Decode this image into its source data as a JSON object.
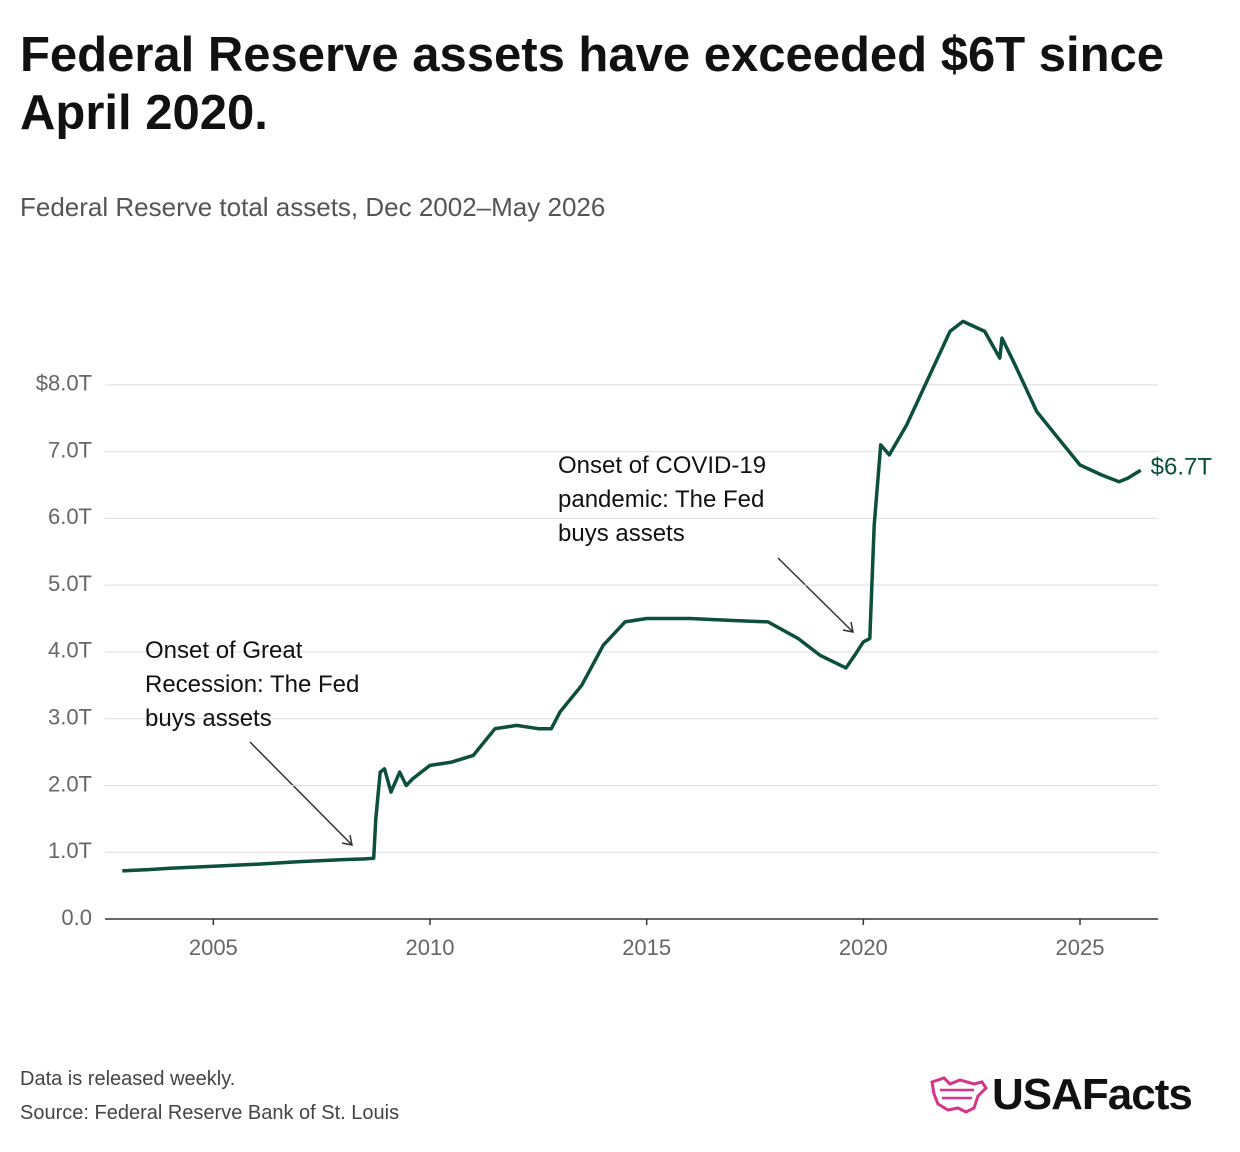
{
  "chart_data": {
    "type": "line",
    "title": "Federal Reserve assets have exceeded $6T since April 2020.",
    "subtitle": "Federal Reserve total assets, Dec 2002–May 2026",
    "x": [
      2002.9,
      2003.5,
      2004,
      2005,
      2006,
      2007,
      2008,
      2008.5,
      2008.7,
      2008.75,
      2008.85,
      2008.95,
      2009.1,
      2009.3,
      2009.45,
      2009.6,
      2010,
      2010.5,
      2011,
      2011.5,
      2012,
      2012.5,
      2012.8,
      2013,
      2013.5,
      2014,
      2014.5,
      2015,
      2016,
      2017,
      2017.8,
      2018.5,
      2019,
      2019.6,
      2019.8,
      2020,
      2020.15,
      2020.25,
      2020.4,
      2020.6,
      2021,
      2021.5,
      2022,
      2022.3,
      2022.8,
      2023.15,
      2023.2,
      2023.5,
      2024,
      2024.5,
      2025,
      2025.5,
      2025.9,
      2026.1,
      2026.4
    ],
    "series": [
      {
        "name": "Federal Reserve total assets",
        "color": "#0b4f3c",
        "values": [
          0.72,
          0.74,
          0.76,
          0.79,
          0.82,
          0.86,
          0.89,
          0.9,
          0.91,
          1.5,
          2.2,
          2.25,
          1.9,
          2.2,
          2.0,
          2.1,
          2.3,
          2.35,
          2.45,
          2.85,
          2.9,
          2.85,
          2.85,
          3.1,
          3.5,
          4.1,
          4.45,
          4.5,
          4.5,
          4.47,
          4.45,
          4.2,
          3.95,
          3.76,
          3.95,
          4.15,
          4.2,
          5.9,
          7.1,
          6.95,
          7.4,
          8.1,
          8.8,
          8.95,
          8.8,
          8.4,
          8.7,
          8.3,
          7.6,
          7.2,
          6.8,
          6.65,
          6.55,
          6.6,
          6.72
        ],
        "end_label": "$6.7T"
      }
    ],
    "xlim": [
      2002.5,
      2026.8
    ],
    "xticks": [
      2005,
      2010,
      2015,
      2020,
      2025
    ],
    "ylim": [
      0,
      9.6
    ],
    "yticks": [
      {
        "value": 0,
        "label": "0.0"
      },
      {
        "value": 1,
        "label": "1.0T"
      },
      {
        "value": 2,
        "label": "2.0T"
      },
      {
        "value": 3,
        "label": "3.0T"
      },
      {
        "value": 4,
        "label": "4.0T"
      },
      {
        "value": 5,
        "label": "5.0T"
      },
      {
        "value": 6,
        "label": "6.0T"
      },
      {
        "value": 7,
        "label": "7.0T"
      },
      {
        "value": 8,
        "label": "$8.0T"
      }
    ],
    "grid": true,
    "annotations": [
      "Onset of Great Recession: The Fed buys assets",
      "Onset of COVID-19 pandemic: The Fed buys assets"
    ],
    "note": "Data is released weekly.",
    "source": "Source: Federal Reserve Bank of St. Louis",
    "logo": "USAFacts"
  }
}
